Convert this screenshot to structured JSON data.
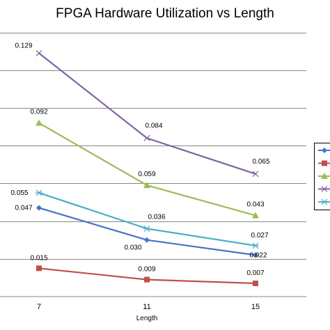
{
  "chart_data": {
    "type": "line",
    "title": "FPGA Hardware Utilization vs Length",
    "xlabel": "Length",
    "ylabel": "",
    "x": [
      7,
      11,
      15
    ],
    "ylim": [
      0,
      0.14
    ],
    "grid": true,
    "legend_position": "right",
    "series": [
      {
        "values": [
          0.047,
          0.03,
          0.022
        ],
        "labels": [
          "0.047",
          "0.030",
          "0.022"
        ],
        "color": "#4472C4",
        "marker": "diamond"
      },
      {
        "values": [
          0.015,
          0.009,
          0.007
        ],
        "labels": [
          "0.015",
          "0.009",
          "0.007"
        ],
        "color": "#C0504D",
        "marker": "square"
      },
      {
        "values": [
          0.092,
          0.059,
          0.043
        ],
        "labels": [
          "0.092",
          "0.059",
          "0.043"
        ],
        "color": "#9BBB59",
        "marker": "triangle"
      },
      {
        "values": [
          0.129,
          0.084,
          0.065
        ],
        "labels": [
          "0.129",
          "0.084",
          "0.065"
        ],
        "color": "#8064A2",
        "marker": "x"
      },
      {
        "values": [
          0.055,
          0.036,
          0.027
        ],
        "labels": [
          "0.055",
          "0.036",
          "0.027"
        ],
        "color": "#4BACC6",
        "marker": "star"
      }
    ]
  }
}
